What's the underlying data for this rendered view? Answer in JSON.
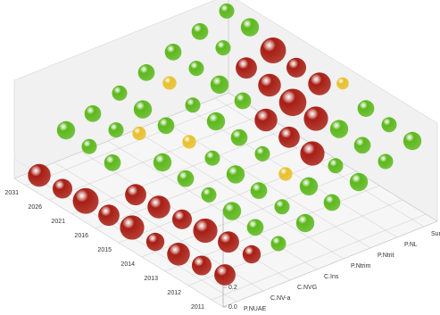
{
  "chart_data": {
    "type": "bubble3d",
    "x_categories": [
      "2011",
      "2012",
      "2013",
      "2014",
      "2015",
      "2016",
      "2021",
      "2026",
      "2031"
    ],
    "z_categories": [
      "P.NUAE",
      "C.NV-a",
      "C.NVG",
      "C.Ins",
      "P.Ntrim",
      "P.Ntrit",
      "P.NL",
      "Summit"
    ],
    "ylim": [
      0,
      1
    ],
    "yticks": [
      {
        "value": 0,
        "label": "0.0"
      },
      {
        "value": 0.2,
        "label": "0.2"
      }
    ],
    "grid": true,
    "series": [
      {
        "color": "#a81e14",
        "x": [
          0,
          1,
          2,
          3,
          4,
          5,
          6,
          7,
          8,
          0,
          1,
          2,
          3,
          4,
          5,
          3,
          4,
          5,
          6,
          4,
          5,
          6,
          2,
          3,
          4
        ],
        "z": [
          0,
          0,
          0,
          0,
          0,
          0,
          0,
          0,
          0,
          1,
          1,
          1,
          1,
          1,
          1,
          6,
          6,
          6,
          6,
          7,
          7,
          7,
          5,
          5,
          5
        ],
        "y": [
          0.2,
          0.15,
          0.12,
          0.1,
          0.1,
          0.08,
          0.08,
          0.06,
          0.05,
          0.3,
          0.28,
          0.25,
          0.22,
          0.2,
          0.18,
          0.7,
          0.72,
          0.75,
          0.78,
          0.8,
          0.82,
          0.85,
          0.6,
          0.62,
          0.65
        ],
        "size": [
          14,
          13,
          15,
          12,
          16,
          14,
          17,
          13,
          15,
          12,
          14,
          16,
          13,
          15,
          14,
          16,
          18,
          15,
          14,
          15,
          13,
          17,
          16,
          14,
          15
        ]
      },
      {
        "color": "#e8c02a",
        "x": [
          5,
          6,
          7,
          3,
          2
        ],
        "z": [
          3,
          2,
          4,
          7,
          4
        ],
        "y": [
          0.5,
          0.55,
          0.7,
          0.95,
          0.5
        ],
        "size": [
          9,
          9,
          9,
          8,
          9
        ]
      },
      {
        "color": "#5cb81c",
        "x": [
          6,
          7,
          8,
          0,
          1,
          2,
          3,
          4,
          5,
          7,
          8,
          0,
          1,
          2,
          3,
          4,
          6,
          7,
          8,
          0,
          1,
          3,
          4,
          5,
          6,
          8,
          0,
          1,
          5,
          6,
          7,
          8,
          0,
          1,
          2,
          7,
          8,
          0,
          1,
          2,
          7,
          8
        ],
        "z": [
          1,
          1,
          1,
          2,
          2,
          2,
          2,
          2,
          2,
          2,
          2,
          3,
          3,
          3,
          3,
          3,
          3,
          3,
          3,
          4,
          4,
          4,
          4,
          4,
          4,
          4,
          5,
          5,
          5,
          5,
          5,
          5,
          6,
          6,
          6,
          6,
          6,
          7,
          7,
          7,
          7,
          7
        ],
        "y": [
          0.36,
          0.38,
          0.4,
          0.3,
          0.32,
          0.34,
          0.36,
          0.38,
          0.4,
          0.44,
          0.46,
          0.4,
          0.42,
          0.44,
          0.46,
          0.48,
          0.52,
          0.54,
          0.56,
          0.5,
          0.52,
          0.56,
          0.58,
          0.6,
          0.62,
          0.66,
          0.6,
          0.62,
          0.7,
          0.72,
          0.74,
          0.76,
          0.7,
          0.72,
          0.74,
          0.84,
          0.86,
          0.8,
          0.82,
          0.84,
          0.94,
          0.96
        ],
        "size": [
          11,
          10,
          12,
          10,
          11,
          12,
          10,
          11,
          12,
          10,
          11,
          12,
          10,
          11,
          12,
          10,
          11,
          12,
          10,
          11,
          12,
          10,
          11,
          12,
          10,
          11,
          12,
          10,
          11,
          12,
          10,
          11,
          10,
          11,
          12,
          10,
          11,
          12,
          10,
          11,
          12,
          10
        ]
      }
    ]
  }
}
